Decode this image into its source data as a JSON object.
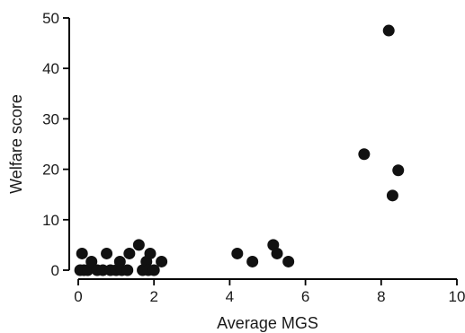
{
  "chart_data": {
    "type": "scatter",
    "title": "",
    "xlabel": "Average MGS",
    "ylabel": "Welfare score",
    "xlim": [
      0,
      10
    ],
    "ylim": [
      0,
      50
    ],
    "xticks": [
      0,
      2,
      4,
      6,
      8,
      10
    ],
    "yticks": [
      0,
      10,
      20,
      30,
      40,
      50
    ],
    "xtick_labels": [
      "0",
      "2",
      "4",
      "6",
      "8",
      "10"
    ],
    "ytick_labels": [
      "0",
      "10",
      "20",
      "30",
      "40",
      "50"
    ],
    "grid": false,
    "marker_color": "#111111",
    "series": [
      {
        "points": [
          {
            "x": 0.05,
            "y": 0
          },
          {
            "x": 0.1,
            "y": 3.3
          },
          {
            "x": 0.15,
            "y": 0
          },
          {
            "x": 0.25,
            "y": 0
          },
          {
            "x": 0.35,
            "y": 1.7
          },
          {
            "x": 0.5,
            "y": 0
          },
          {
            "x": 0.65,
            "y": 0
          },
          {
            "x": 0.75,
            "y": 3.3
          },
          {
            "x": 0.85,
            "y": 0
          },
          {
            "x": 1.0,
            "y": 0
          },
          {
            "x": 1.1,
            "y": 1.7
          },
          {
            "x": 1.15,
            "y": 0
          },
          {
            "x": 1.3,
            "y": 0
          },
          {
            "x": 1.35,
            "y": 3.3
          },
          {
            "x": 1.6,
            "y": 5.0
          },
          {
            "x": 1.7,
            "y": 0
          },
          {
            "x": 1.8,
            "y": 1.7
          },
          {
            "x": 1.85,
            "y": 0
          },
          {
            "x": 1.9,
            "y": 3.3
          },
          {
            "x": 2.0,
            "y": 0
          },
          {
            "x": 2.2,
            "y": 1.7
          },
          {
            "x": 4.2,
            "y": 3.3
          },
          {
            "x": 4.6,
            "y": 1.7
          },
          {
            "x": 5.15,
            "y": 5.0
          },
          {
            "x": 5.25,
            "y": 3.3
          },
          {
            "x": 5.55,
            "y": 1.7
          },
          {
            "x": 7.55,
            "y": 23.0
          },
          {
            "x": 8.2,
            "y": 47.5
          },
          {
            "x": 8.3,
            "y": 14.8
          },
          {
            "x": 8.45,
            "y": 19.8
          }
        ]
      }
    ]
  }
}
